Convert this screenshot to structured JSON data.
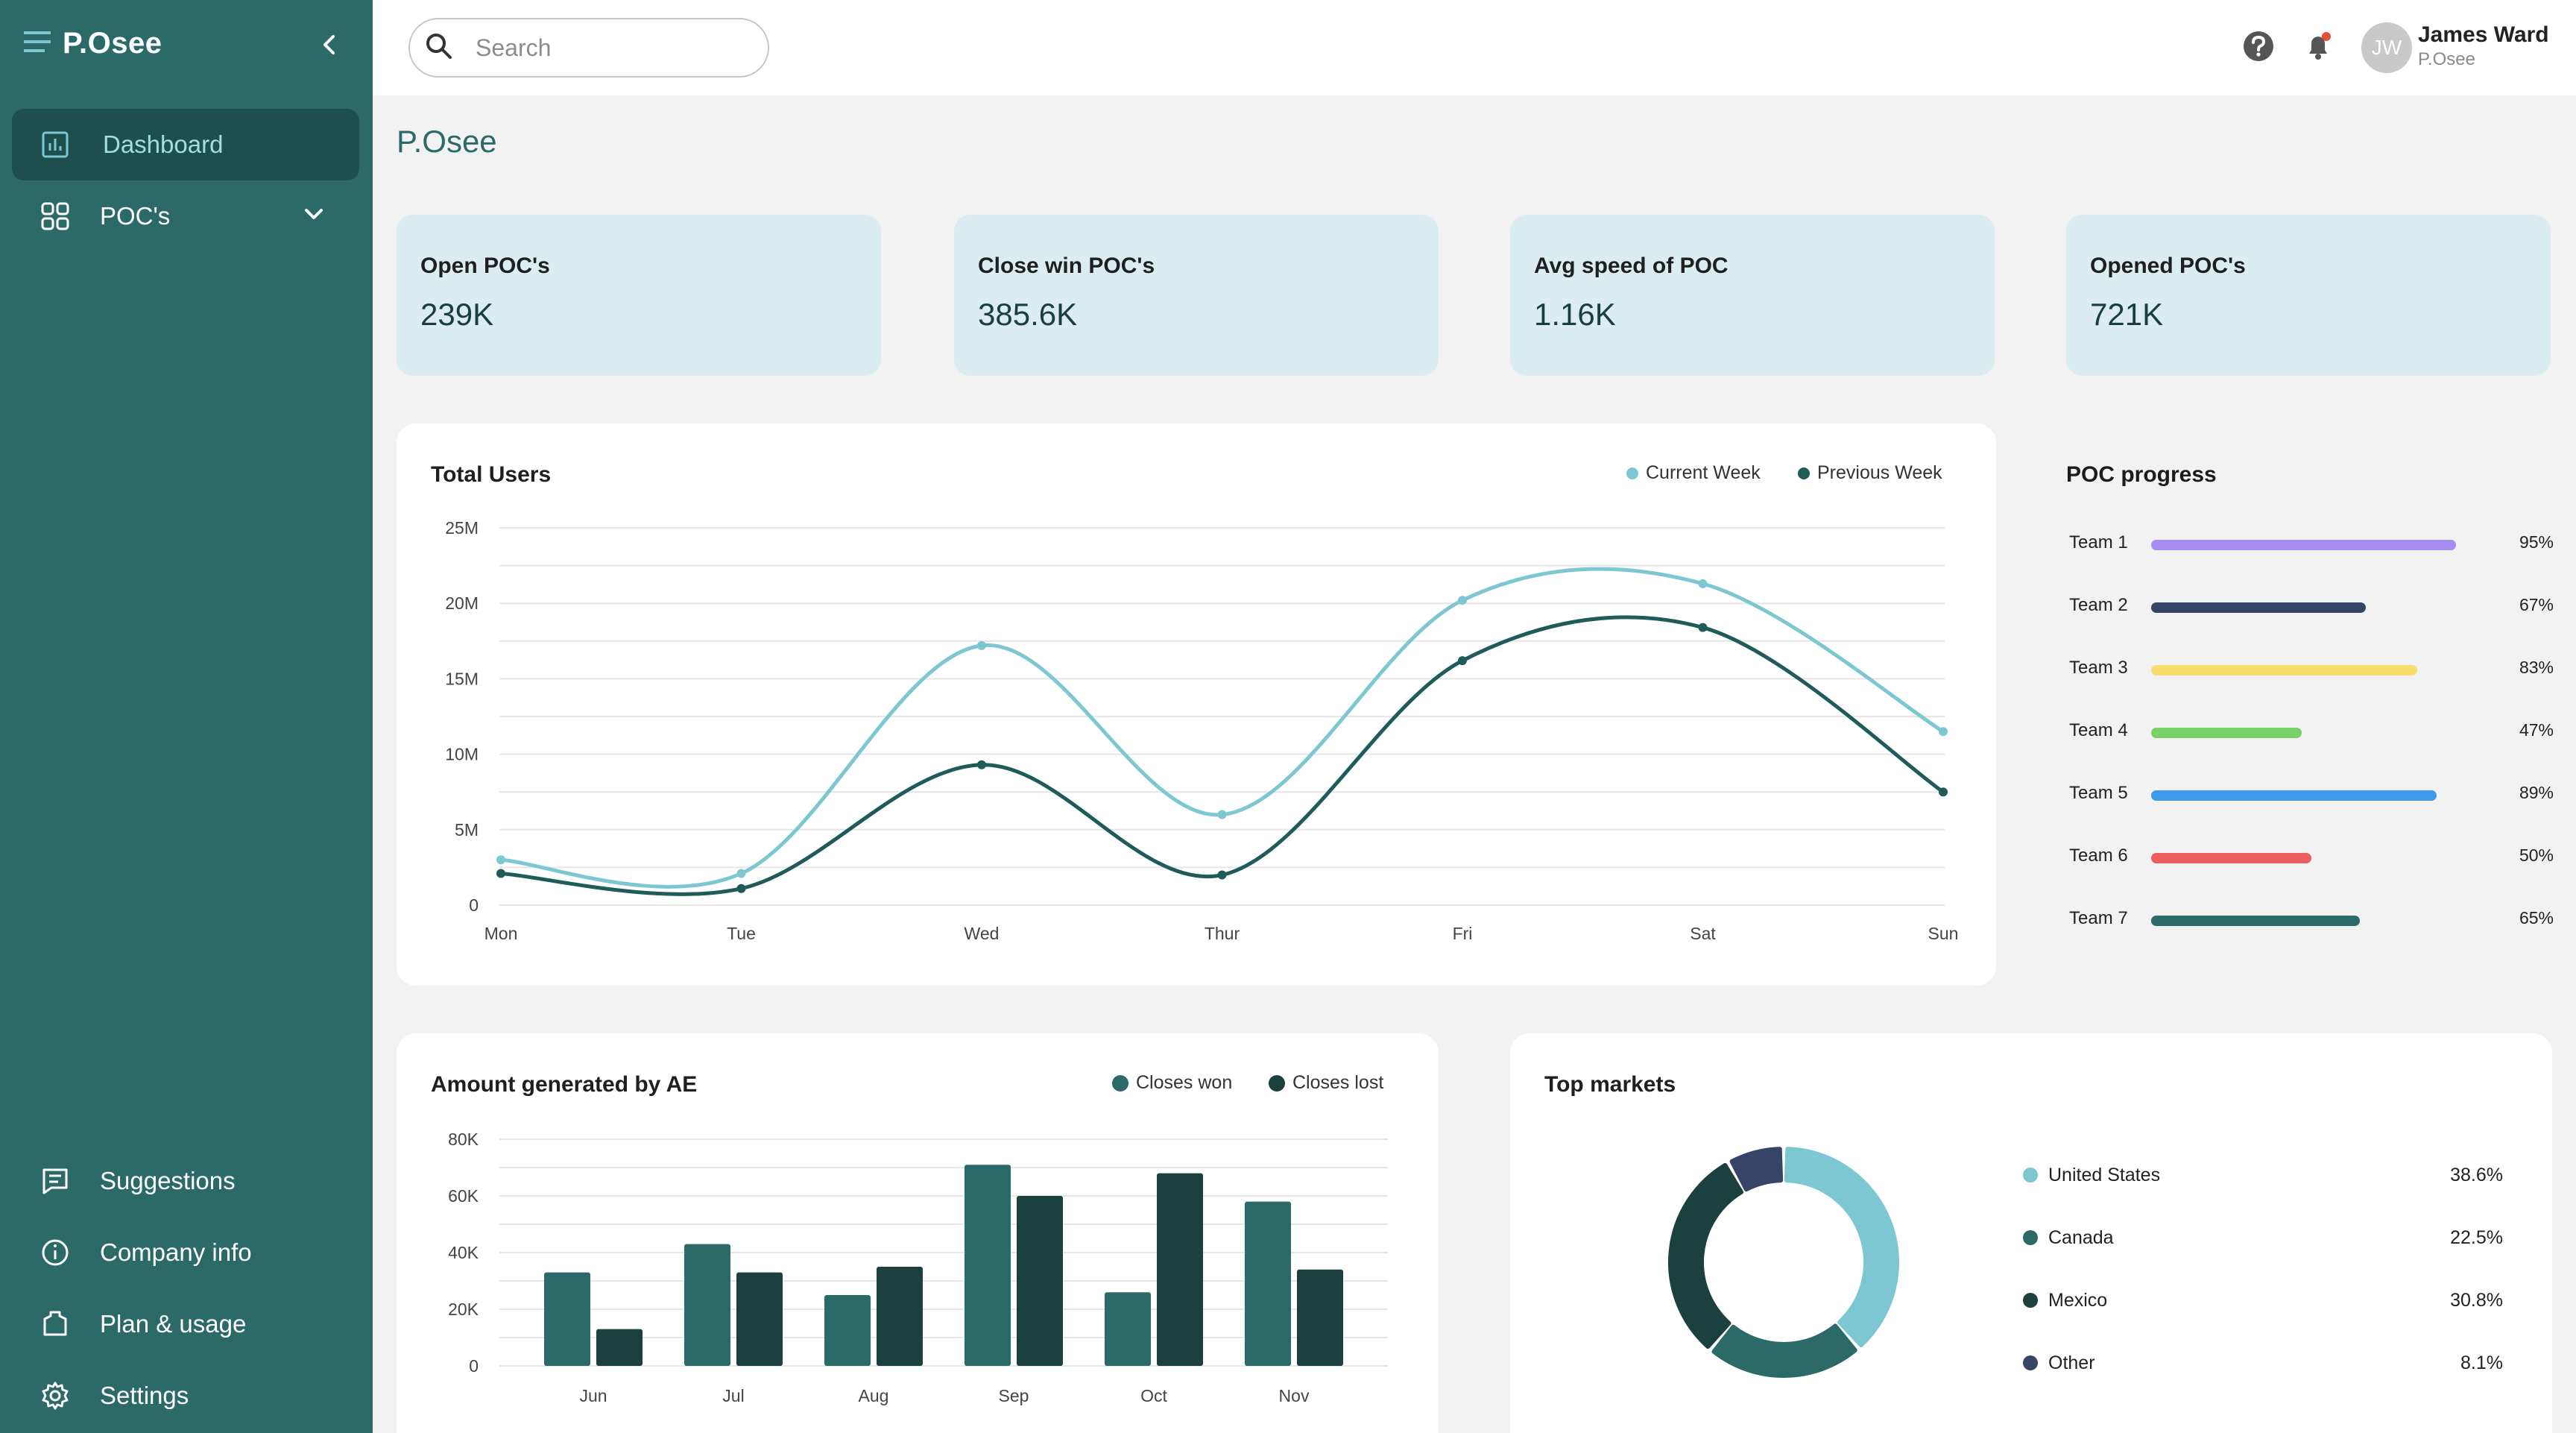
{
  "sidebar": {
    "brand": "P.Osee",
    "nav": [
      {
        "label": "Dashboard",
        "icon": "bar-chart-icon"
      },
      {
        "label": "POC's",
        "icon": "grid-icon"
      }
    ],
    "bottom": [
      {
        "label": "Suggestions",
        "icon": "message-icon"
      },
      {
        "label": "Company info",
        "icon": "info-icon"
      },
      {
        "label": "Plan & usage",
        "icon": "hexagon-icon"
      },
      {
        "label": "Settings",
        "icon": "gear-icon"
      }
    ]
  },
  "header": {
    "search_placeholder": "Search",
    "user": {
      "initials": "JW",
      "name": "James Ward",
      "org": "P.Osee"
    },
    "colors": {
      "notification": "#e74c3c"
    }
  },
  "page": {
    "title": "P.Osee"
  },
  "kpis": [
    {
      "label": "Open POC's",
      "value": "239K"
    },
    {
      "label": "Close win POC's",
      "value": "385.6K"
    },
    {
      "label": "Avg speed of POC",
      "value": "1.16K"
    },
    {
      "label": "Opened POC's",
      "value": "721K"
    }
  ],
  "colors": {
    "primary": "#2c6a68",
    "light_teal": "#7cc7d2",
    "dark_teal": "#1f5b58",
    "darker_teal": "#1b403e"
  },
  "poc_progress": {
    "title": "POC progress",
    "teams": [
      {
        "label": "Team 1",
        "value": 95,
        "pct": "95%",
        "color": "#a48cf0"
      },
      {
        "label": "Team 2",
        "value": 67,
        "pct": "67%",
        "color": "#364565"
      },
      {
        "label": "Team 3",
        "value": 83,
        "pct": "83%",
        "color": "#f7de6e"
      },
      {
        "label": "Team 4",
        "value": 47,
        "pct": "47%",
        "color": "#79d266"
      },
      {
        "label": "Team 5",
        "value": 89,
        "pct": "89%",
        "color": "#3f99e8"
      },
      {
        "label": "Team 6",
        "value": 50,
        "pct": "50%",
        "color": "#ec5e5e"
      },
      {
        "label": "Team 7",
        "value": 65,
        "pct": "65%",
        "color": "#2c6a68"
      }
    ]
  },
  "chart_data": [
    {
      "type": "line",
      "title": "Total Users",
      "x": [
        "Mon",
        "Tue",
        "Wed",
        "Thur",
        "Fri",
        "Sat",
        "Sun"
      ],
      "y_ticks": [
        "0",
        "5M",
        "10M",
        "15M",
        "20M",
        "25M"
      ],
      "ylim": [
        0,
        25
      ],
      "legend_position": "top-right",
      "grid": true,
      "series": [
        {
          "name": "Current Week",
          "color": "#7cc7d2",
          "values": [
            3.0,
            2.1,
            17.2,
            6.0,
            20.2,
            21.3,
            11.5
          ]
        },
        {
          "name": "Previous Week",
          "color": "#1f5b58",
          "values": [
            2.1,
            1.1,
            9.3,
            2.0,
            16.2,
            18.4,
            7.5
          ]
        }
      ]
    },
    {
      "type": "bar",
      "title": "Amount generated by AE",
      "categories": [
        "Jun",
        "Jul",
        "Aug",
        "Sep",
        "Oct",
        "Nov"
      ],
      "y_ticks": [
        "0",
        "20K",
        "40K",
        "60K",
        "80K"
      ],
      "ylim": [
        0,
        80
      ],
      "legend_position": "top-right",
      "grid": true,
      "series": [
        {
          "name": "Closes won",
          "color": "#2c6a68",
          "values": [
            33,
            43,
            25,
            71,
            26,
            58
          ]
        },
        {
          "name": "Closes lost",
          "color": "#1b403e",
          "values": [
            13,
            33,
            35,
            60,
            68,
            34
          ]
        }
      ]
    },
    {
      "type": "pie",
      "title": "Top markets",
      "legend_position": "right",
      "slices": [
        {
          "label": "United States",
          "pct": "38.6%",
          "value": 38.6,
          "color": "#7cc7d2"
        },
        {
          "label": "Canada",
          "pct": "22.5%",
          "value": 22.5,
          "color": "#2c6a68"
        },
        {
          "label": "Mexico",
          "pct": "30.8%",
          "value": 30.8,
          "color": "#1b403e"
        },
        {
          "label": "Other",
          "pct": "8.1%",
          "value": 8.1,
          "color": "#364565"
        }
      ]
    }
  ]
}
